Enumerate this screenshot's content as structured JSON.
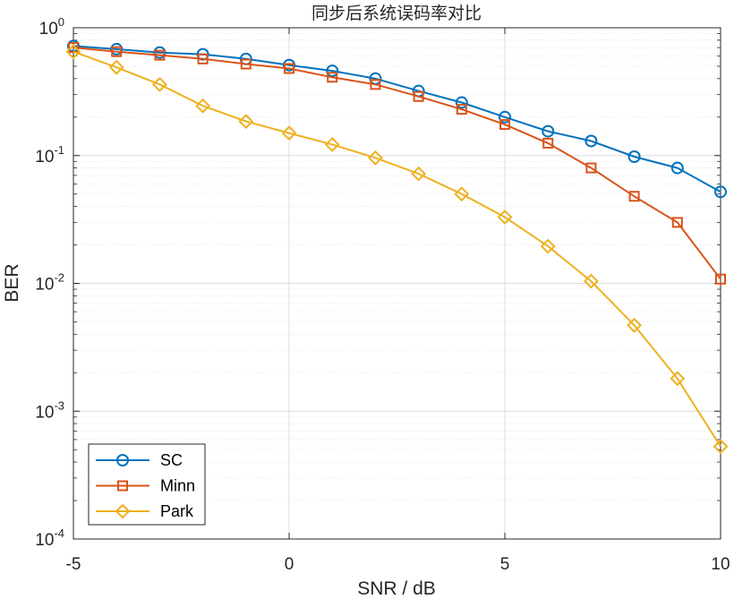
{
  "chart_data": {
    "type": "line",
    "title": "同步后系统误码率对比",
    "xlabel": "SNR / dB",
    "ylabel": "BER",
    "xlim": [
      -5,
      10
    ],
    "ylim": [
      0.0001,
      1
    ],
    "yscale": "log",
    "grid": true,
    "x_ticks": [
      {
        "value": -5,
        "label": "-5"
      },
      {
        "value": 0,
        "label": "0"
      },
      {
        "value": 5,
        "label": "5"
      },
      {
        "value": 10,
        "label": "10"
      }
    ],
    "y_ticks": [
      {
        "value": 1,
        "base": "10",
        "exp": "0"
      },
      {
        "value": 0.1,
        "base": "10",
        "exp": "-1"
      },
      {
        "value": 0.01,
        "base": "10",
        "exp": "-2"
      },
      {
        "value": 0.001,
        "base": "10",
        "exp": "-3"
      },
      {
        "value": 0.0001,
        "base": "10",
        "exp": "-4"
      }
    ],
    "legend_position": "bottom-left",
    "x": [
      -5,
      -4,
      -3,
      -2,
      -1,
      0,
      1,
      2,
      3,
      4,
      5,
      6,
      7,
      8,
      9,
      10
    ],
    "series": [
      {
        "name": "SC",
        "marker": "circle",
        "color": "#0072BD",
        "values": [
          0.72,
          0.68,
          0.64,
          0.62,
          0.57,
          0.51,
          0.46,
          0.4,
          0.32,
          0.26,
          0.2,
          0.155,
          0.13,
          0.098,
          0.08,
          0.052
        ]
      },
      {
        "name": "Minn",
        "marker": "square",
        "color": "#D95319",
        "values": [
          0.7,
          0.65,
          0.61,
          0.57,
          0.52,
          0.48,
          0.41,
          0.36,
          0.29,
          0.23,
          0.175,
          0.125,
          0.08,
          0.048,
          0.03,
          0.0108
        ]
      },
      {
        "name": "Park",
        "marker": "diamond",
        "color": "#EDB120",
        "values": [
          0.65,
          0.49,
          0.36,
          0.245,
          0.185,
          0.15,
          0.122,
          0.096,
          0.072,
          0.05,
          0.033,
          0.0195,
          0.0104,
          0.0047,
          0.0018,
          0.00053
        ]
      }
    ]
  }
}
